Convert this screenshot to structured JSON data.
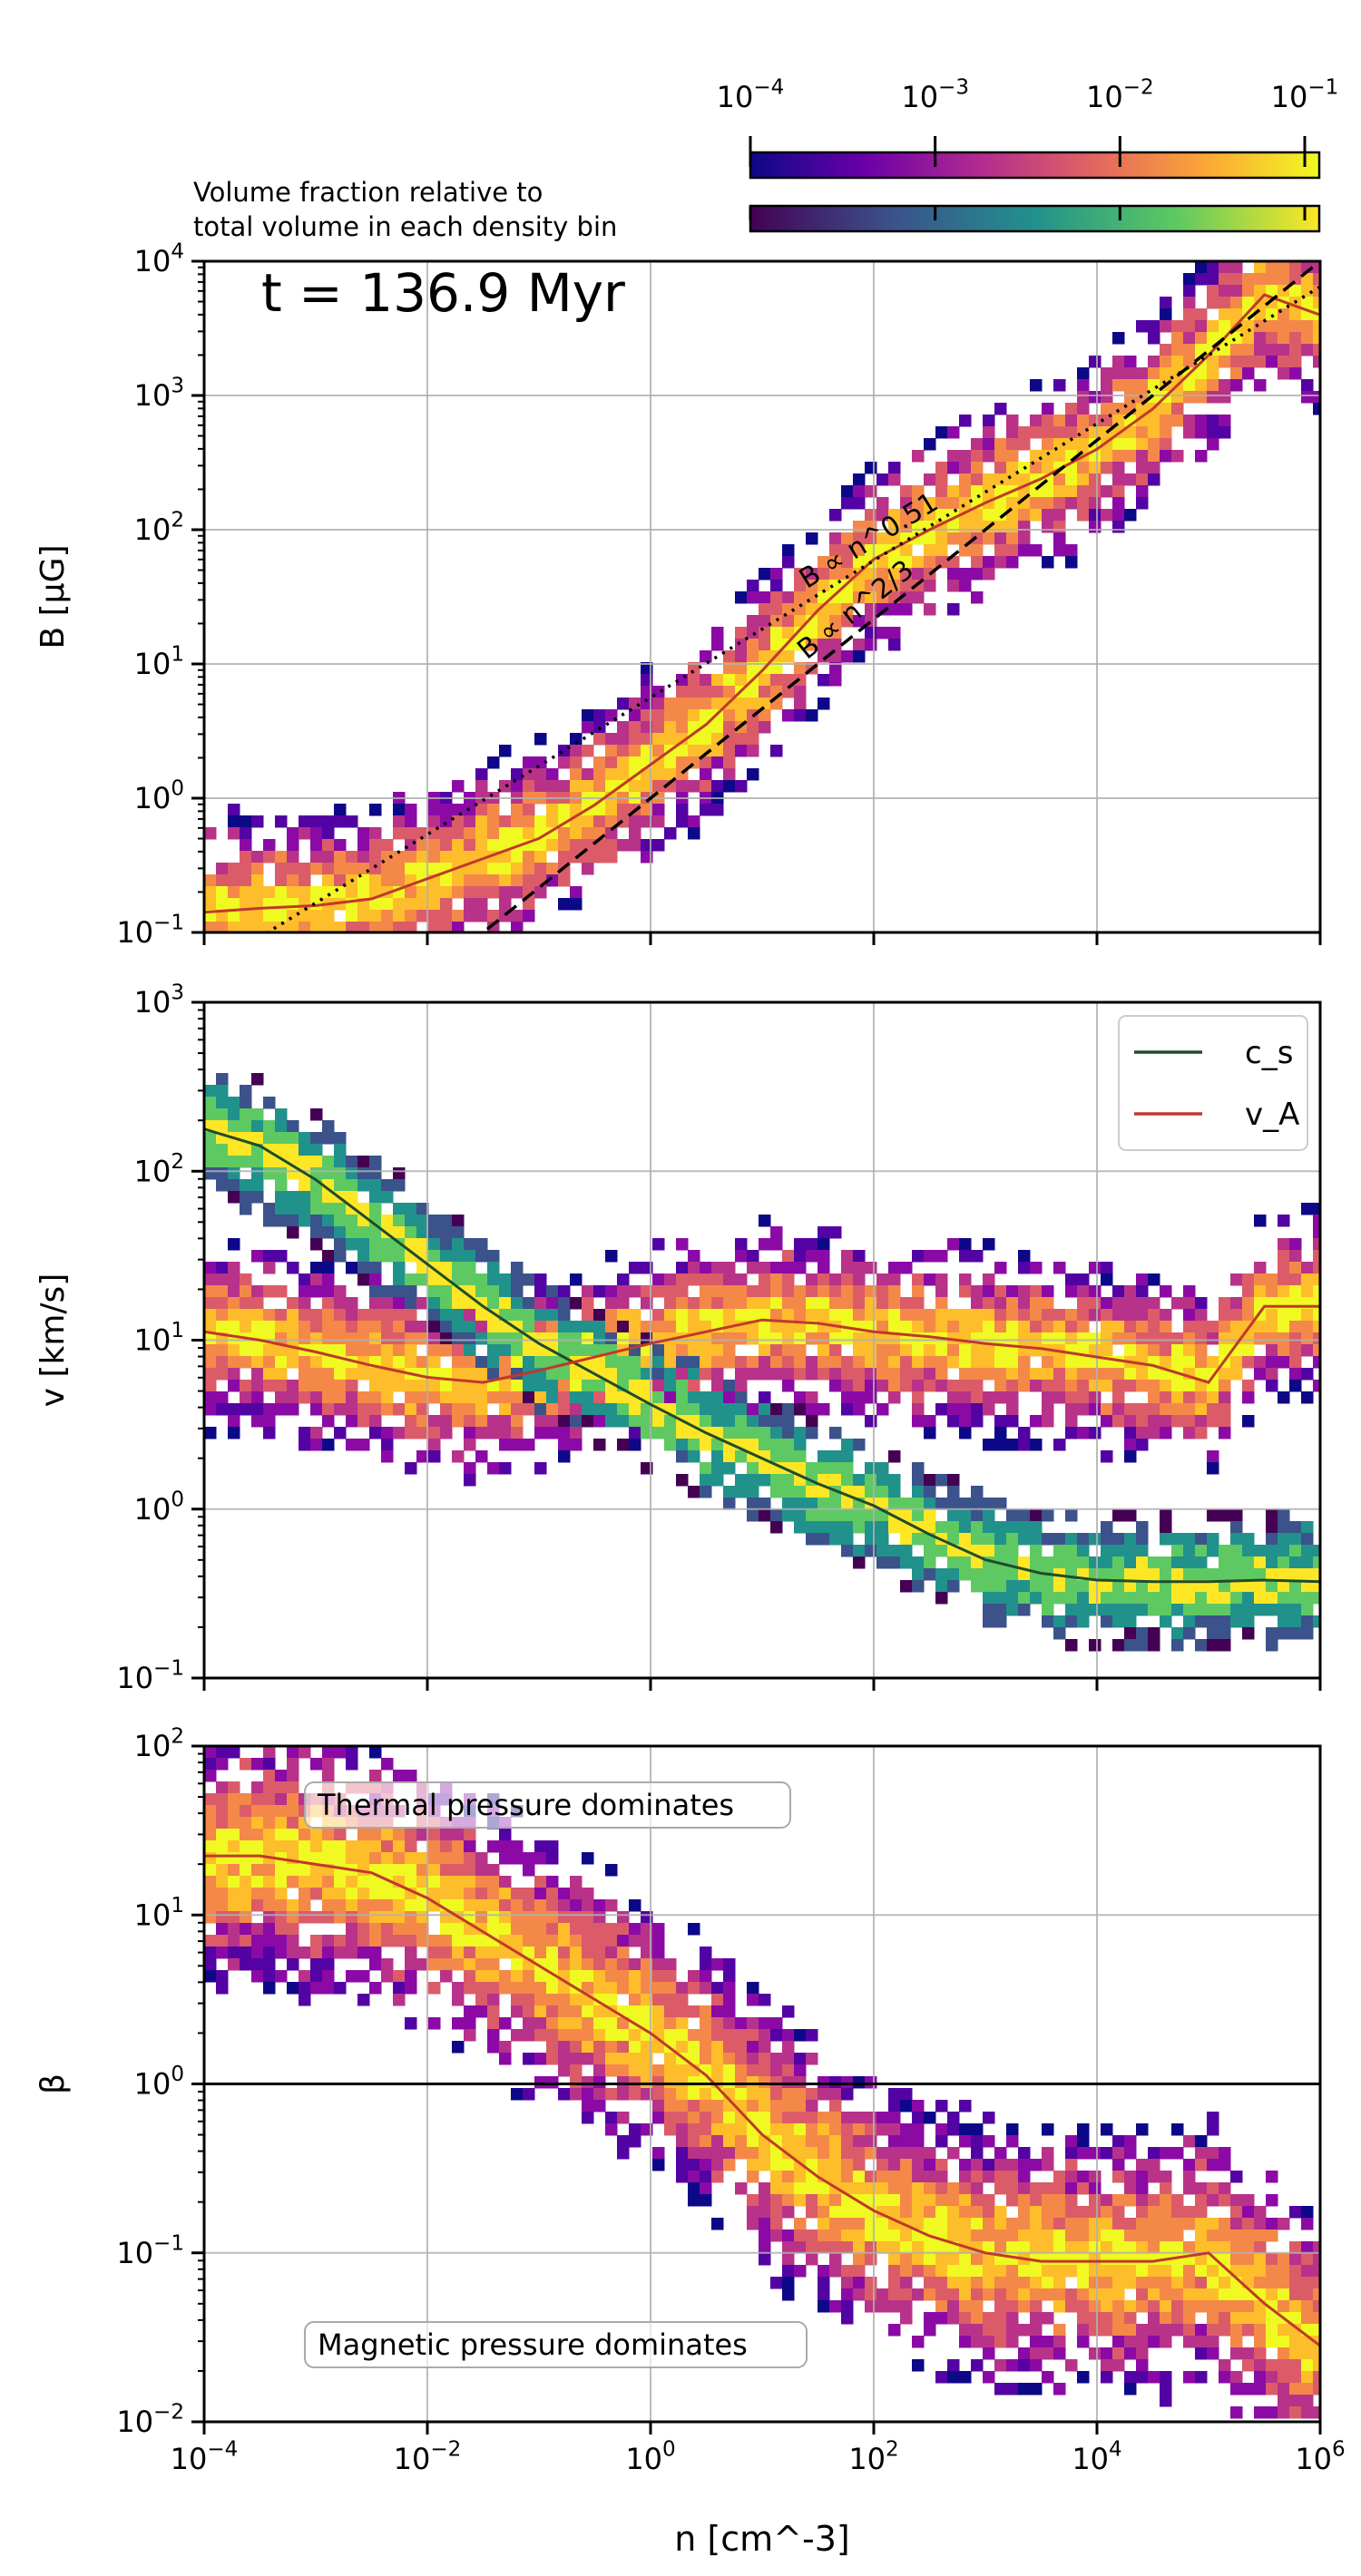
{
  "chart_data": {
    "type": "heatmap",
    "time_label": "t = 136.9 Myr",
    "colorbar": {
      "label_line1": "Volume fraction relative to",
      "label_line2": "total volume in each density bin",
      "range": [
        0.0001,
        0.1
      ],
      "scale": "log",
      "tick_labels": [
        "10^-4",
        "10^-3",
        "10^-2",
        "10^-1"
      ],
      "colormaps": [
        "plasma",
        "viridis"
      ]
    },
    "shared_x": {
      "label": "n [cm^-3]",
      "range": [
        0.0001,
        1000000
      ],
      "scale": "log",
      "tick_labels": [
        "10^-4",
        "10^-2",
        "10^0",
        "10^2",
        "10^4",
        "10^6"
      ]
    },
    "panels": [
      {
        "name": "B",
        "ylabel": "B [μG]",
        "ylim": [
          0.1,
          10000
        ],
        "scale": "log",
        "y_tick_labels": [
          "10^-1",
          "10^0",
          "10^1",
          "10^2",
          "10^3",
          "10^4"
        ],
        "grid": true,
        "series": [
          {
            "name": "median B",
            "color": "#c0392b",
            "x_log": [
              -4,
              -3.5,
              -3,
              -2.5,
              -2,
              -1.5,
              -1,
              -0.5,
              0,
              0.5,
              1,
              1.5,
              2,
              2.5,
              3,
              3.5,
              4,
              4.5,
              5,
              5.5,
              6
            ],
            "y_log": [
              -0.85,
              -0.82,
              -0.8,
              -0.75,
              -0.6,
              -0.45,
              -0.3,
              -0.05,
              0.25,
              0.55,
              0.95,
              1.4,
              1.78,
              2.0,
              2.2,
              2.38,
              2.6,
              2.9,
              3.3,
              3.75,
              3.6
            ]
          }
        ],
        "fit_lines": [
          {
            "label": "B ∝ n^0.51",
            "style": "dotted",
            "slope": 0.51,
            "intercept_log": 0.75
          },
          {
            "label": "B ∝ n^2/3",
            "style": "dashed",
            "slope": 0.6667,
            "intercept_log": 0.0
          }
        ]
      },
      {
        "name": "v",
        "ylabel": "v [km/s]",
        "ylim": [
          0.1,
          1000
        ],
        "scale": "log",
        "y_tick_labels": [
          "10^-1",
          "10^0",
          "10^1",
          "10^2",
          "10^3"
        ],
        "grid": true,
        "legend": {
          "placement": "top-right",
          "entries": [
            "c_s",
            "v_A"
          ]
        },
        "series": [
          {
            "name": "c_s",
            "color": "#1e4d2b",
            "x_log": [
              -4,
              -3.5,
              -3,
              -2.5,
              -2,
              -1.5,
              -1,
              -0.5,
              0,
              0.5,
              1,
              1.5,
              2,
              2.5,
              3,
              3.5,
              4,
              4.5,
              5,
              5.5,
              6
            ],
            "y_log": [
              2.25,
              2.15,
              1.95,
              1.7,
              1.45,
              1.2,
              0.98,
              0.8,
              0.62,
              0.45,
              0.3,
              0.15,
              0.02,
              -0.15,
              -0.3,
              -0.38,
              -0.42,
              -0.43,
              -0.43,
              -0.42,
              -0.43
            ]
          },
          {
            "name": "v_A",
            "color": "#c0392b",
            "x_log": [
              -4,
              -3.5,
              -3,
              -2.5,
              -2,
              -1.5,
              -1,
              -0.5,
              0,
              0.5,
              1,
              1.5,
              2,
              2.5,
              3,
              3.5,
              4,
              4.5,
              5,
              5.5,
              6
            ],
            "y_log": [
              1.05,
              1.0,
              0.93,
              0.85,
              0.78,
              0.75,
              0.82,
              0.9,
              0.98,
              1.05,
              1.12,
              1.1,
              1.05,
              1.02,
              0.98,
              0.95,
              0.9,
              0.85,
              0.75,
              1.2,
              1.2
            ]
          }
        ]
      },
      {
        "name": "beta",
        "ylabel": "β",
        "ylim": [
          0.01,
          100
        ],
        "scale": "log",
        "y_tick_labels": [
          "10^-2",
          "10^-1",
          "10^0",
          "10^1",
          "10^2"
        ],
        "grid": true,
        "hline": 1,
        "annotations": [
          "Thermal pressure dominates",
          "Magnetic pressure dominates"
        ],
        "series": [
          {
            "name": "median beta",
            "color": "#c0392b",
            "x_log": [
              -4,
              -3.5,
              -3,
              -2.5,
              -2,
              -1.5,
              -1,
              -0.5,
              0,
              0.5,
              1,
              1.5,
              2,
              2.5,
              3,
              3.5,
              4,
              4.5,
              5,
              5.5,
              6
            ],
            "y_log": [
              1.35,
              1.35,
              1.3,
              1.25,
              1.1,
              0.9,
              0.7,
              0.5,
              0.3,
              0.05,
              -0.3,
              -0.55,
              -0.75,
              -0.9,
              -1.0,
              -1.05,
              -1.05,
              -1.05,
              -1.0,
              -1.3,
              -1.55
            ]
          }
        ]
      }
    ]
  }
}
